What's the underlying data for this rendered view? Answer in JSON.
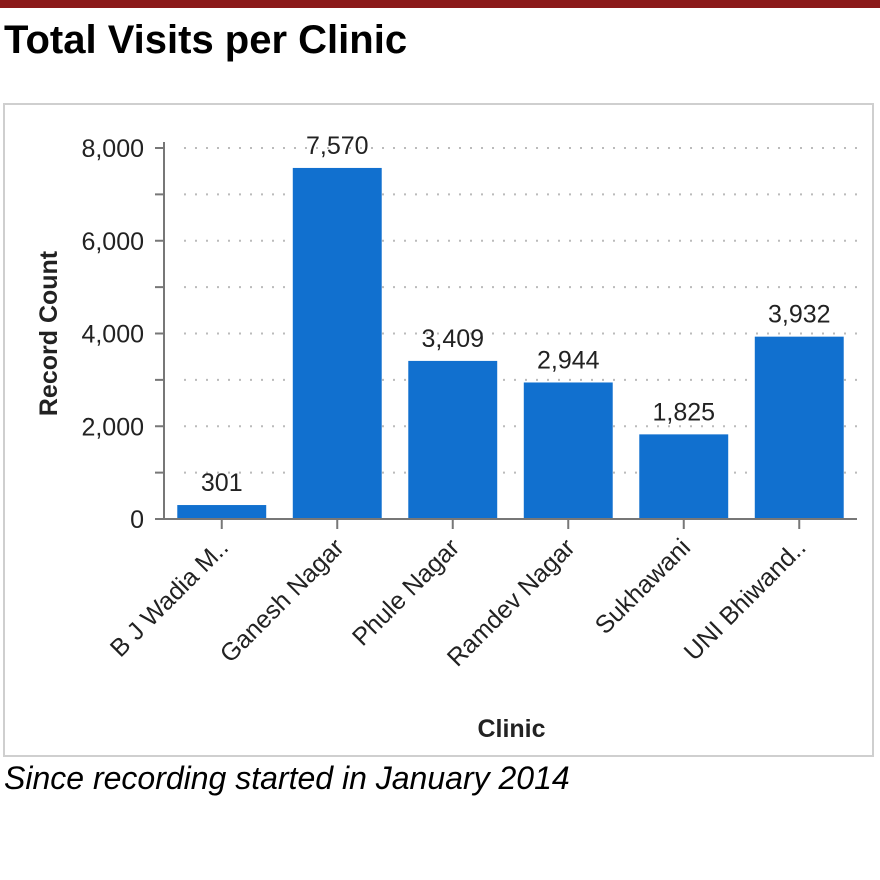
{
  "page": {
    "title": "Total Visits per Clinic",
    "caption": "Since recording started in January 2014"
  },
  "colors": {
    "bar": "#1170cf",
    "top_rule": "#8b1a1a",
    "axis": "#777777",
    "grid": "#bbbbbb"
  },
  "chart_data": {
    "type": "bar",
    "xlabel": "Clinic",
    "ylabel": "Record Count",
    "categories": [
      "B J Wadia M..",
      "Ganesh Nagar",
      "Phule Nagar",
      "Ramdev Nagar",
      "Sukhawani",
      "UNI Bhiwand.."
    ],
    "values": [
      301,
      7570,
      3409,
      2944,
      1825,
      3932
    ],
    "value_labels": [
      "301",
      "7,570",
      "3,409",
      "2,944",
      "1,825",
      "3,932"
    ],
    "ylim": [
      0,
      8000
    ],
    "yticks": [
      0,
      2000,
      4000,
      6000,
      8000
    ],
    "ytick_labels": [
      "0",
      "2,000",
      "4,000",
      "6,000",
      "8,000"
    ],
    "grid": true,
    "legend": "none"
  }
}
